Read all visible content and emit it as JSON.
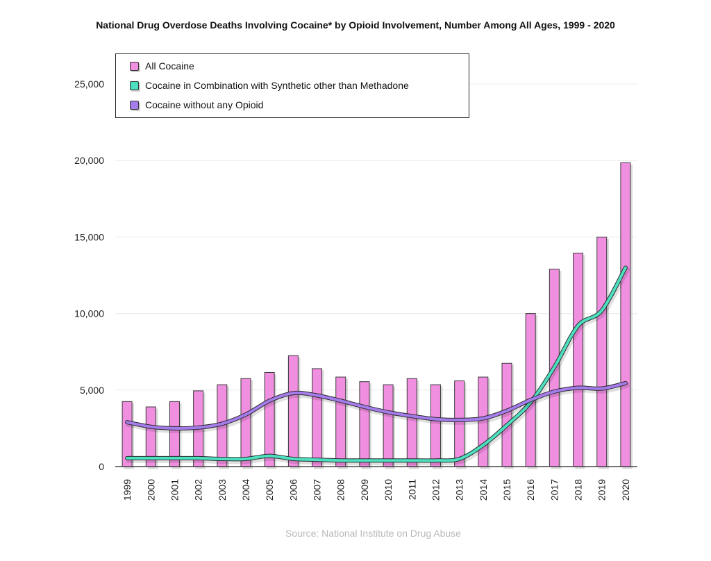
{
  "chart_data": {
    "type": "bar",
    "title": "National Drug Overdose Deaths Involving Cocaine* by Opioid Involvement, Number Among All Ages, 1999 - 2020",
    "xlabel": "",
    "ylabel": "",
    "categories": [
      "1999",
      "2000",
      "2001",
      "2002",
      "2003",
      "2004",
      "2005",
      "2006",
      "2007",
      "2008",
      "2009",
      "2010",
      "2011",
      "2012",
      "2013",
      "2014",
      "2015",
      "2016",
      "2017",
      "2018",
      "2019",
      "2020"
    ],
    "ylim": [
      0,
      25000
    ],
    "yticks": [
      0,
      5000,
      10000,
      15000,
      20000,
      25000
    ],
    "ytick_labels": [
      "0",
      "5,000",
      "10,000",
      "15,000",
      "20,000",
      "25,000"
    ],
    "grid": true,
    "legend_position": "top-left",
    "series": [
      {
        "name": "All Cocaine",
        "type": "bar",
        "color": "#f08ee0",
        "values": [
          4250,
          3900,
          4250,
          4950,
          5350,
          5750,
          6150,
          7250,
          6400,
          5850,
          5550,
          5350,
          5750,
          5350,
          5600,
          5850,
          6750,
          10000,
          12900,
          13950,
          15000,
          19850
        ]
      },
      {
        "name": "Cocaine in Combination with Synthetic other than Methadone",
        "type": "line",
        "color": "#4de0c0",
        "values": [
          550,
          550,
          550,
          550,
          500,
          500,
          700,
          500,
          450,
          400,
          400,
          400,
          400,
          400,
          500,
          1400,
          2700,
          4200,
          6500,
          9200,
          10200,
          13000
        ]
      },
      {
        "name": "Cocaine without any Opioid",
        "type": "line",
        "color": "#a57cec",
        "values": [
          2900,
          2600,
          2500,
          2550,
          2800,
          3400,
          4300,
          4800,
          4650,
          4300,
          3900,
          3550,
          3300,
          3100,
          3050,
          3150,
          3650,
          4350,
          4900,
          5150,
          5100,
          5450
        ]
      }
    ]
  },
  "source": "Source: National Institute on Drug Abuse"
}
